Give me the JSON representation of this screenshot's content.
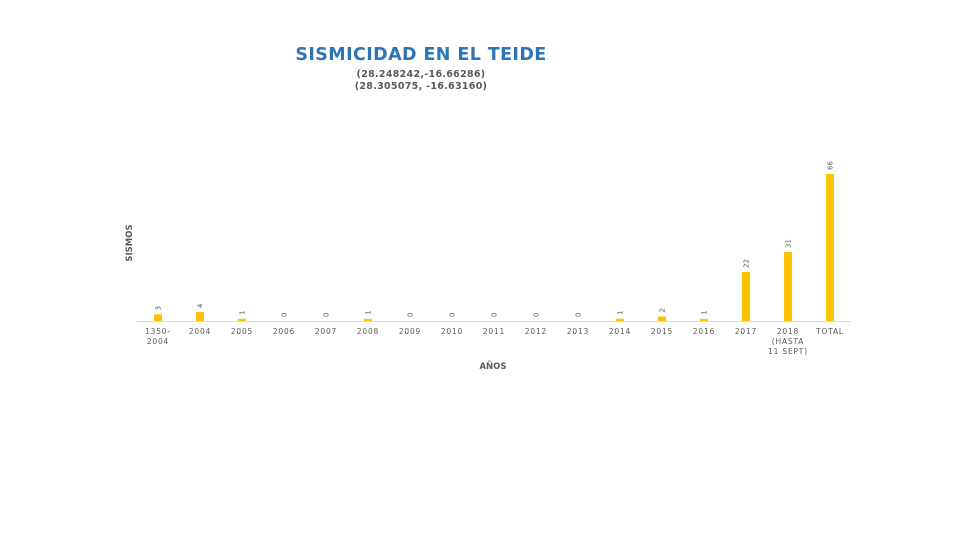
{
  "chart_data": {
    "type": "bar",
    "title": "SISMICIDAD EN EL TEIDE",
    "subtitle": [
      "(28.248242,-16.66286)",
      "(28.305075, -16.63160)"
    ],
    "xlabel": "AÑOS",
    "ylabel": "SISMOS",
    "categories": [
      [
        "1350-",
        "2004"
      ],
      [
        "2004"
      ],
      [
        "2005"
      ],
      [
        "2006"
      ],
      [
        "2007"
      ],
      [
        "2008"
      ],
      [
        "2009"
      ],
      [
        "2010"
      ],
      [
        "2011"
      ],
      [
        "2012"
      ],
      [
        "2013"
      ],
      [
        "2014"
      ],
      [
        "2015"
      ],
      [
        "2016"
      ],
      [
        "2017"
      ],
      [
        "2018",
        "(HASTA",
        "11 SEPT)"
      ],
      [
        "TOTAL"
      ]
    ],
    "values": [
      3,
      4,
      1,
      0,
      0,
      1,
      0,
      0,
      0,
      0,
      0,
      1,
      2,
      1,
      22,
      31,
      66
    ],
    "ylim": [
      0,
      66
    ],
    "grid": false,
    "legend": "none",
    "bar_color": "#ffc000"
  }
}
